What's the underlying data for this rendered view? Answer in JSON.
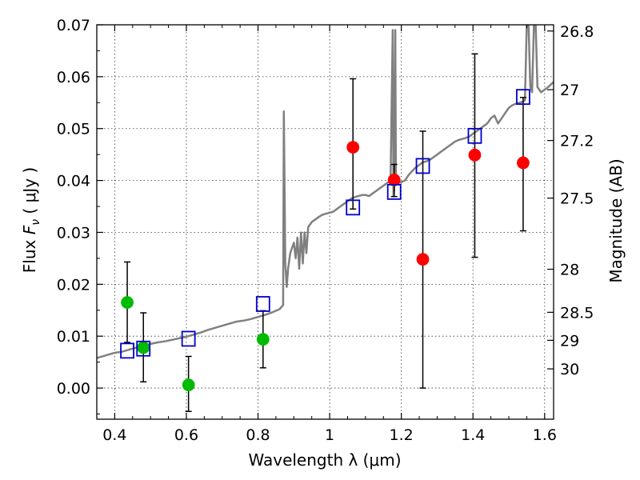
{
  "chart_data": {
    "type": "scatter",
    "xlabel": "Wavelength  λ (μm)",
    "ylabel_prefix": "Flux ",
    "ylabel_symbol": "F",
    "ylabel_subscript": "ν",
    "ylabel_suffix": "  ( μJy )",
    "y2label": "Magnitude (AB)",
    "xlim": [
      0.35,
      1.625
    ],
    "ylim": [
      -0.006,
      0.07
    ],
    "grid": true,
    "x_ticks": [
      {
        "value": 0.4,
        "label": "0.4"
      },
      {
        "value": 0.6,
        "label": "0.6"
      },
      {
        "value": 0.8,
        "label": "0.8"
      },
      {
        "value": 1.0,
        "label": "1"
      },
      {
        "value": 1.2,
        "label": "1.2"
      },
      {
        "value": 1.4,
        "label": "1.4"
      },
      {
        "value": 1.6,
        "label": "1.6"
      }
    ],
    "y_ticks": [
      {
        "value": 0.0,
        "label": "0.00"
      },
      {
        "value": 0.01,
        "label": "0.01"
      },
      {
        "value": 0.02,
        "label": "0.02"
      },
      {
        "value": 0.03,
        "label": "0.03"
      },
      {
        "value": 0.04,
        "label": "0.04"
      },
      {
        "value": 0.05,
        "label": "0.05"
      },
      {
        "value": 0.06,
        "label": "0.06"
      },
      {
        "value": 0.07,
        "label": "0.07"
      }
    ],
    "y2_ticks": [
      {
        "flux": 0.0688,
        "label": "26.8"
      },
      {
        "flux": 0.0575,
        "label": "27"
      },
      {
        "flux": 0.0477,
        "label": "27.2"
      },
      {
        "flux": 0.0366,
        "label": "27.5"
      },
      {
        "flux": 0.0229,
        "label": "28"
      },
      {
        "flux": 0.0146,
        "label": "28.5"
      },
      {
        "flux": 0.0092,
        "label": "29"
      },
      {
        "flux": 0.0037,
        "label": "30"
      }
    ],
    "series": [
      {
        "name": "model_spectrum",
        "kind": "line",
        "color": "#808080",
        "x": [
          0.35,
          0.36,
          0.37,
          0.38,
          0.39,
          0.4,
          0.41,
          0.42,
          0.43,
          0.44,
          0.45,
          0.46,
          0.47,
          0.48,
          0.49,
          0.5,
          0.52,
          0.54,
          0.56,
          0.58,
          0.6,
          0.62,
          0.64,
          0.66,
          0.68,
          0.7,
          0.72,
          0.74,
          0.76,
          0.78,
          0.8,
          0.82,
          0.84,
          0.86,
          0.87,
          0.872,
          0.876,
          0.88,
          0.884,
          0.89,
          0.9,
          0.905,
          0.91,
          0.915,
          0.92,
          0.925,
          0.93,
          0.935,
          0.94,
          0.95,
          0.96,
          0.97,
          0.98,
          0.99,
          1.0,
          1.01,
          1.02,
          1.03,
          1.04,
          1.05,
          1.06,
          1.07,
          1.08,
          1.09,
          1.1,
          1.11,
          1.12,
          1.13,
          1.14,
          1.15,
          1.16,
          1.17,
          1.176,
          1.178,
          1.18,
          1.183,
          1.185,
          1.19,
          1.2,
          1.21,
          1.22,
          1.23,
          1.24,
          1.25,
          1.26,
          1.27,
          1.28,
          1.29,
          1.3,
          1.31,
          1.32,
          1.33,
          1.34,
          1.35,
          1.36,
          1.37,
          1.38,
          1.39,
          1.4,
          1.41,
          1.42,
          1.43,
          1.44,
          1.45,
          1.46,
          1.47,
          1.48,
          1.49,
          1.5,
          1.51,
          1.52,
          1.53,
          1.54,
          1.545,
          1.55,
          1.555,
          1.56,
          1.565,
          1.57,
          1.575,
          1.58,
          1.585,
          1.59,
          1.6,
          1.61,
          1.625
        ],
        "y": [
          0.0058,
          0.006,
          0.0062,
          0.0064,
          0.0066,
          0.0068,
          0.0069,
          0.007,
          0.0072,
          0.0074,
          0.0076,
          0.0078,
          0.0079,
          0.0081,
          0.0083,
          0.0085,
          0.0088,
          0.009,
          0.0093,
          0.0096,
          0.0099,
          0.0103,
          0.0107,
          0.0112,
          0.0116,
          0.012,
          0.0124,
          0.0128,
          0.013,
          0.0133,
          0.0137,
          0.0141,
          0.0146,
          0.0152,
          0.016,
          0.0533,
          0.024,
          0.0195,
          0.023,
          0.026,
          0.028,
          0.025,
          0.029,
          0.023,
          0.03,
          0.024,
          0.03,
          0.026,
          0.031,
          0.032,
          0.0325,
          0.033,
          0.0334,
          0.0336,
          0.0338,
          0.034,
          0.0345,
          0.035,
          0.0355,
          0.036,
          0.0365,
          0.0368,
          0.037,
          0.0372,
          0.0372,
          0.037,
          0.0375,
          0.038,
          0.0385,
          0.039,
          0.0395,
          0.04,
          0.069,
          0.037,
          0.038,
          0.069,
          0.04,
          0.0395,
          0.0397,
          0.04,
          0.041,
          0.0418,
          0.0425,
          0.043,
          0.0435,
          0.0437,
          0.044,
          0.0445,
          0.045,
          0.0455,
          0.046,
          0.0465,
          0.047,
          0.0475,
          0.0478,
          0.048,
          0.0482,
          0.0485,
          0.049,
          0.0495,
          0.05,
          0.0505,
          0.051,
          0.052,
          0.0525,
          0.051,
          0.052,
          0.053,
          0.054,
          0.0545,
          0.0548,
          0.055,
          0.0552,
          0.0555,
          0.07,
          0.07,
          0.058,
          0.057,
          0.07,
          0.07,
          0.058,
          0.0575,
          0.057,
          0.0575,
          0.058,
          0.059
        ]
      },
      {
        "name": "model_bandpass_fluxes",
        "kind": "open_square",
        "color": "#0000cc",
        "x": [
          0.435,
          0.48,
          0.606,
          0.814,
          1.065,
          1.18,
          1.26,
          1.405,
          1.54
        ],
        "y": [
          0.0072,
          0.0076,
          0.0095,
          0.0162,
          0.0348,
          0.0378,
          0.0428,
          0.0486,
          0.0561
        ]
      },
      {
        "name": "optical_observed",
        "kind": "filled_circle",
        "color": "#00bb00",
        "x": [
          0.435,
          0.48,
          0.606,
          0.814
        ],
        "y": [
          0.0165,
          0.0078,
          0.0006,
          0.0094
        ],
        "yerr_low": [
          0.0077,
          0.0066,
          0.0051,
          0.0055
        ],
        "yerr_high": [
          0.0078,
          0.0067,
          0.0055,
          0.0055
        ]
      },
      {
        "name": "nir_observed",
        "kind": "filled_circle",
        "color": "#ff0000",
        "x": [
          1.065,
          1.18,
          1.26,
          1.405,
          1.54
        ],
        "y": [
          0.0464,
          0.0401,
          0.0248,
          0.0449,
          0.0434
        ],
        "yerr_low": [
          0.0119,
          0.0032,
          0.0248,
          0.0197,
          0.0131
        ],
        "yerr_high": [
          0.0132,
          0.003,
          0.0247,
          0.0195,
          0.0126
        ]
      }
    ]
  }
}
